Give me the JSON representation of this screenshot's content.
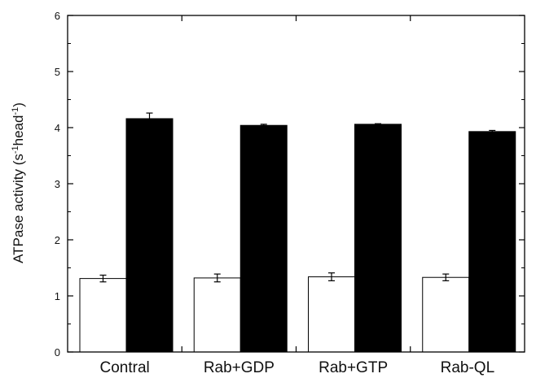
{
  "chart_data": {
    "type": "bar",
    "categories": [
      "Contral",
      "Rab+GDP",
      "Rab+GTP",
      "Rab-QL"
    ],
    "ylabel": {
      "prefix": "ATPase activity (s",
      "sup1": "-1",
      "middle": "head",
      "sup2": "-1",
      "suffix": ")"
    },
    "ylim": [
      0,
      6
    ],
    "yticks": [
      0,
      1,
      2,
      3,
      4,
      5,
      6
    ],
    "grid": false,
    "legend": "none",
    "series": [
      {
        "fill": "#ffffff",
        "stroke": "#000000",
        "values": [
          1.31,
          1.32,
          1.34,
          1.33
        ],
        "errors": [
          0.06,
          0.07,
          0.07,
          0.06
        ]
      },
      {
        "fill": "#000000",
        "stroke": "#000000",
        "values": [
          4.16,
          4.04,
          4.06,
          3.93
        ],
        "errors": [
          0.1,
          0.02,
          0.01,
          0.02
        ]
      }
    ]
  }
}
